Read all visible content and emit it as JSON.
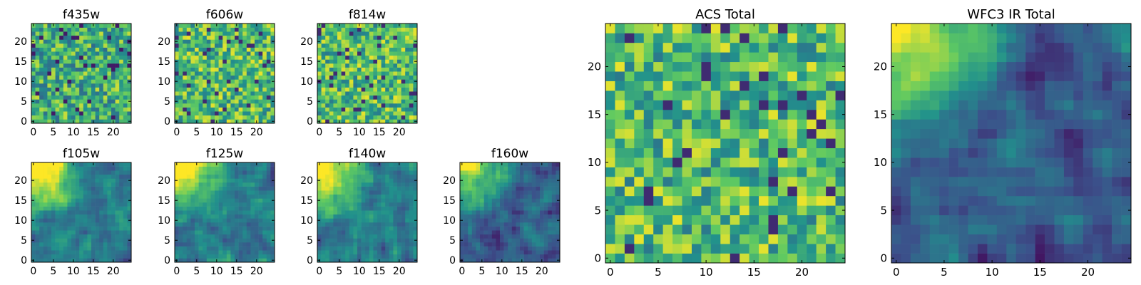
{
  "chart_data": [
    {
      "type": "heatmap",
      "title": "f435w",
      "xticks": [
        "0",
        "5",
        "10",
        "15",
        "20"
      ],
      "yticks": [
        "0",
        "5",
        "10",
        "15",
        "20"
      ],
      "xlim": [
        -0.5,
        24.5
      ],
      "ylim": [
        -0.5,
        24.5
      ],
      "texture": "noise",
      "seed": 11
    },
    {
      "type": "heatmap",
      "title": "f606w",
      "xticks": [
        "0",
        "5",
        "10",
        "15",
        "20"
      ],
      "yticks": [
        "0",
        "5",
        "10",
        "15",
        "20"
      ],
      "xlim": [
        -0.5,
        24.5
      ],
      "ylim": [
        -0.5,
        24.5
      ],
      "texture": "noise-bright",
      "seed": 23
    },
    {
      "type": "heatmap",
      "title": "f814w",
      "xticks": [
        "0",
        "5",
        "10",
        "15",
        "20"
      ],
      "yticks": [
        "0",
        "5",
        "10",
        "15",
        "20"
      ],
      "xlim": [
        -0.5,
        24.5
      ],
      "ylim": [
        -0.5,
        24.5
      ],
      "texture": "noise-bright",
      "seed": 37
    },
    {
      "type": "heatmap",
      "title": "f105w",
      "xticks": [
        "0",
        "5",
        "10",
        "15",
        "20"
      ],
      "yticks": [
        "0",
        "5",
        "10",
        "15",
        "20"
      ],
      "xlim": [
        -0.5,
        24.5
      ],
      "ylim": [
        -0.5,
        24.5
      ],
      "texture": "smooth-corner",
      "seed": 41
    },
    {
      "type": "heatmap",
      "title": "f125w",
      "xticks": [
        "0",
        "5",
        "10",
        "15",
        "20"
      ],
      "yticks": [
        "0",
        "5",
        "10",
        "15",
        "20"
      ],
      "xlim": [
        -0.5,
        24.5
      ],
      "ylim": [
        -0.5,
        24.5
      ],
      "texture": "smooth-corner",
      "seed": 53
    },
    {
      "type": "heatmap",
      "title": "f140w",
      "xticks": [
        "0",
        "5",
        "10",
        "15",
        "20"
      ],
      "yticks": [
        "0",
        "5",
        "10",
        "15",
        "20"
      ],
      "xlim": [
        -0.5,
        24.5
      ],
      "ylim": [
        -0.5,
        24.5
      ],
      "texture": "smooth-corner",
      "seed": 67
    },
    {
      "type": "heatmap",
      "title": "f160w",
      "xticks": [
        "0",
        "5",
        "10",
        "15",
        "20"
      ],
      "yticks": [
        "0",
        "5",
        "10",
        "15",
        "20"
      ],
      "xlim": [
        -0.5,
        24.5
      ],
      "ylim": [
        -0.5,
        24.5
      ],
      "texture": "smooth-corner-dark",
      "seed": 79
    },
    {
      "type": "heatmap",
      "title": "ACS Total",
      "xticks": [
        "0",
        "5",
        "10",
        "15",
        "20"
      ],
      "yticks": [
        "0",
        "5",
        "10",
        "15",
        "20"
      ],
      "xlim": [
        -0.5,
        24.5
      ],
      "ylim": [
        -0.5,
        24.5
      ],
      "texture": "noise-bright",
      "seed": 97
    },
    {
      "type": "heatmap",
      "title": "WFC3 IR Total",
      "xticks": [
        "0",
        "5",
        "10",
        "15",
        "20"
      ],
      "yticks": [
        "0",
        "5",
        "10",
        "15",
        "20"
      ],
      "xlim": [
        -0.5,
        24.5
      ],
      "ylim": [
        -0.5,
        24.5
      ],
      "texture": "smooth-corner-dark",
      "seed": 101
    }
  ],
  "colormap": [
    "#440154",
    "#3b528b",
    "#21918c",
    "#5ec962",
    "#fde725"
  ],
  "grid_size": 25
}
